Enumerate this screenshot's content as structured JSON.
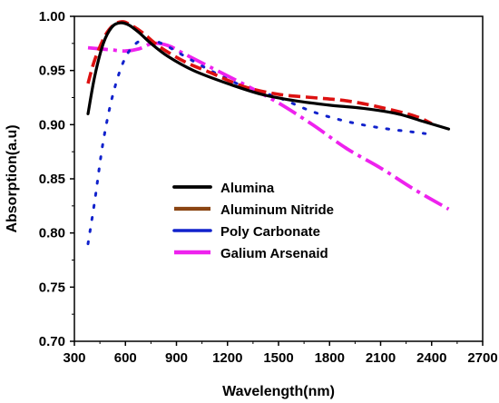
{
  "chart_data": {
    "type": "line",
    "title": "",
    "xlabel": "Wavelength(nm)",
    "ylabel": "Absorption(a.u)",
    "xlim": [
      300,
      2700
    ],
    "ylim": [
      0.7,
      1.0
    ],
    "xticks": [
      300,
      600,
      900,
      1200,
      1500,
      1800,
      2100,
      2400,
      2700
    ],
    "yticks": [
      0.7,
      0.75,
      0.8,
      0.85,
      0.9,
      0.95,
      1.0
    ],
    "xtick_labels": [
      "300",
      "600",
      "900",
      "1200",
      "1500",
      "1800",
      "2100",
      "2400",
      "2700"
    ],
    "ytick_labels": [
      "0.70",
      "0.75",
      "0.80",
      "0.85",
      "0.90",
      "0.95",
      "1.00"
    ],
    "grid": false,
    "legend_position": "center",
    "series": [
      {
        "name": "Alumina",
        "color": "#000000",
        "style": "solid",
        "x": [
          380,
          420,
          470,
          520,
          570,
          620,
          680,
          750,
          850,
          1000,
          1200,
          1400,
          1600,
          1800,
          2000,
          2200,
          2350,
          2500
        ],
        "y": [
          0.91,
          0.945,
          0.975,
          0.99,
          0.994,
          0.992,
          0.985,
          0.975,
          0.963,
          0.95,
          0.938,
          0.928,
          0.922,
          0.918,
          0.915,
          0.91,
          0.903,
          0.896
        ]
      },
      {
        "name": "Aluminum Nitride",
        "color": "#dd1111",
        "style": "dashed",
        "x": [
          380,
          420,
          480,
          530,
          580,
          620,
          700,
          800,
          950,
          1100,
          1300,
          1500,
          1700,
          1900,
          2100,
          2300,
          2400
        ],
        "y": [
          0.938,
          0.96,
          0.982,
          0.992,
          0.995,
          0.993,
          0.985,
          0.972,
          0.958,
          0.948,
          0.935,
          0.928,
          0.925,
          0.922,
          0.916,
          0.908,
          0.901
        ]
      },
      {
        "name": "Poly Carbonate",
        "color": "#1122cc",
        "style": "dotted",
        "x": [
          380,
          420,
          470,
          530,
          600,
          680,
          760,
          850,
          950,
          1100,
          1300,
          1500,
          1700,
          1900,
          2100,
          2300,
          2400
        ],
        "y": [
          0.79,
          0.83,
          0.885,
          0.93,
          0.962,
          0.977,
          0.978,
          0.972,
          0.963,
          0.95,
          0.935,
          0.925,
          0.912,
          0.903,
          0.897,
          0.893,
          0.891
        ]
      },
      {
        "name": "Galium Arsenaid",
        "color": "#ee22ee",
        "style": "dashdot",
        "x": [
          380,
          450,
          520,
          600,
          680,
          760,
          850,
          950,
          1100,
          1300,
          1500,
          1700,
          1900,
          2100,
          2300,
          2500
        ],
        "y": [
          0.971,
          0.97,
          0.969,
          0.968,
          0.97,
          0.975,
          0.973,
          0.965,
          0.953,
          0.937,
          0.92,
          0.9,
          0.878,
          0.86,
          0.84,
          0.822
        ]
      }
    ]
  }
}
